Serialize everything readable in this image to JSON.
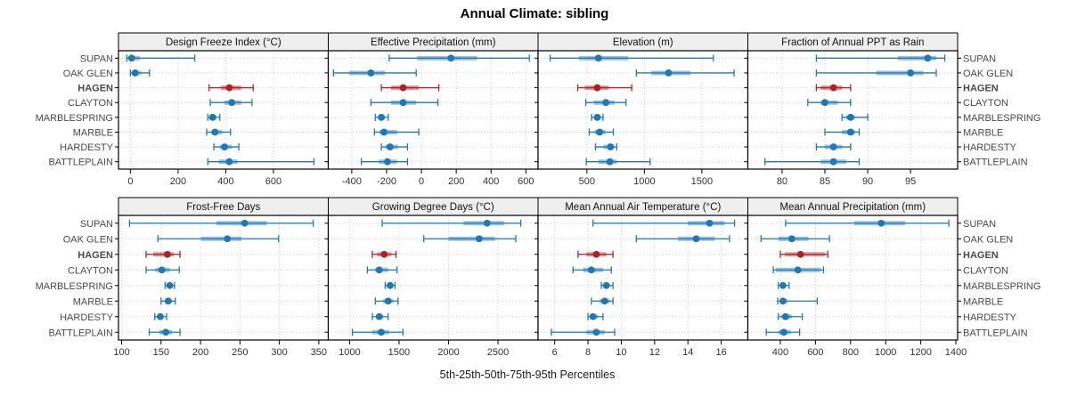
{
  "title": "Annual Climate: sibling",
  "footer": "5th-25th-50th-75th-95th Percentiles",
  "stations": [
    "SUPAN",
    "OAK GLEN",
    "HAGEN",
    "CLAYTON",
    "MARBLESPRING",
    "MARBLE",
    "HARDESTY",
    "BATTLEPLAIN"
  ],
  "highlight_station": "HAGEN",
  "colors": {
    "point": "#1f78b4",
    "band": "#1f78b4",
    "highlight_point": "#b02126",
    "highlight_band": "#b02126",
    "header_bg": "#efefef",
    "panel_border": "#000000",
    "grid": "#c9c9c9",
    "station_label": "#4a4a4a",
    "tick_label": "#333333"
  },
  "chart_data": [
    {
      "type": "dotplot_percentile",
      "row": 0,
      "col": 0,
      "title": "Design Freeze Index (°C)",
      "xlim": [
        -50,
        830
      ],
      "ticks": [
        0,
        200,
        400,
        600
      ],
      "tick_labels": [
        "0",
        "200",
        "400",
        "600"
      ],
      "percentiles": [
        "5th",
        "25th",
        "50th",
        "75th",
        "95th"
      ],
      "values": {
        "SUPAN": [
          -15,
          -5,
          5,
          40,
          270
        ],
        "OAK GLEN": [
          0,
          8,
          20,
          45,
          80
        ],
        "HAGEN": [
          330,
          380,
          415,
          465,
          515
        ],
        "CLAYTON": [
          335,
          395,
          425,
          465,
          510
        ],
        "MARBLESPRING": [
          325,
          335,
          345,
          360,
          375
        ],
        "MARBLE": [
          320,
          340,
          355,
          385,
          420
        ],
        "HARDESTY": [
          350,
          375,
          395,
          425,
          455
        ],
        "BATTLEPLAIN": [
          325,
          370,
          415,
          450,
          770
        ]
      }
    },
    {
      "type": "dotplot_percentile",
      "row": 0,
      "col": 1,
      "title": "Effective Precipitation (mm)",
      "xlim": [
        -535,
        670
      ],
      "ticks": [
        -400,
        -200,
        0,
        200,
        400,
        600
      ],
      "tick_labels": [
        "-400",
        "-200",
        "0",
        "200",
        "400",
        "600"
      ],
      "percentiles": [
        "5th",
        "25th",
        "50th",
        "75th",
        "95th"
      ],
      "values": {
        "SUPAN": [
          -185,
          -25,
          170,
          320,
          620
        ],
        "OAK GLEN": [
          -505,
          -415,
          -290,
          -210,
          -30
        ],
        "HAGEN": [
          -230,
          -175,
          -105,
          -15,
          100
        ],
        "CLAYTON": [
          -290,
          -175,
          -105,
          -30,
          95
        ],
        "MARBLESPRING": [
          -265,
          -245,
          -230,
          -210,
          -190
        ],
        "MARBLE": [
          -270,
          -240,
          -215,
          -140,
          -15
        ],
        "HARDESTY": [
          -230,
          -205,
          -180,
          -135,
          -80
        ],
        "BATTLEPLAIN": [
          -345,
          -245,
          -195,
          -140,
          -80
        ]
      }
    },
    {
      "type": "dotplot_percentile",
      "row": 0,
      "col": 2,
      "title": "Elevation (m)",
      "xlim": [
        75,
        1900
      ],
      "ticks": [
        500,
        1000,
        1500
      ],
      "tick_labels": [
        "500",
        "1000",
        "1500"
      ],
      "percentiles": [
        "5th",
        "25th",
        "50th",
        "75th",
        "95th"
      ],
      "values": {
        "SUPAN": [
          180,
          430,
          600,
          860,
          1600
        ],
        "OAK GLEN": [
          930,
          1060,
          1210,
          1400,
          1780
        ],
        "HAGEN": [
          420,
          480,
          590,
          690,
          890
        ],
        "CLAYTON": [
          490,
          560,
          665,
          740,
          840
        ],
        "MARBLESPRING": [
          540,
          565,
          590,
          615,
          640
        ],
        "MARBLE": [
          520,
          570,
          610,
          660,
          730
        ],
        "HARDESTY": [
          575,
          645,
          705,
          735,
          760
        ],
        "BATTLEPLAIN": [
          495,
          600,
          700,
          760,
          1050
        ]
      }
    },
    {
      "type": "dotplot_percentile",
      "row": 0,
      "col": 3,
      "title": "Fraction of Annual PPT as Rain",
      "xlim": [
        76,
        100.5
      ],
      "ticks": [
        80,
        85,
        90,
        95
      ],
      "tick_labels": [
        "80",
        "85",
        "90",
        "95"
      ],
      "percentiles": [
        "5th",
        "25th",
        "50th",
        "75th",
        "95th"
      ],
      "values": {
        "SUPAN": [
          84,
          93.5,
          97,
          98,
          99
        ],
        "OAK GLEN": [
          84,
          91,
          95,
          96.5,
          98
        ],
        "HAGEN": [
          84,
          84.5,
          86,
          87,
          88
        ],
        "CLAYTON": [
          83,
          84.5,
          85,
          86.5,
          88
        ],
        "MARBLESPRING": [
          87,
          87.5,
          88,
          88.5,
          90
        ],
        "MARBLE": [
          85,
          87,
          88,
          88.5,
          89
        ],
        "HARDESTY": [
          84,
          85,
          86,
          87,
          88
        ],
        "BATTLEPLAIN": [
          78,
          84.5,
          86,
          87.5,
          89
        ]
      }
    },
    {
      "type": "dotplot_percentile",
      "row": 1,
      "col": 0,
      "title": "Frost-Free Days",
      "xlim": [
        96,
        362
      ],
      "ticks": [
        100,
        150,
        200,
        250,
        300,
        350
      ],
      "tick_labels": [
        "100",
        "150",
        "200",
        "250",
        "300",
        "350"
      ],
      "percentiles": [
        "5th",
        "25th",
        "50th",
        "75th",
        "95th"
      ],
      "values": {
        "SUPAN": [
          110,
          220,
          256,
          284,
          343
        ],
        "OAK GLEN": [
          146,
          201,
          234,
          252,
          299
        ],
        "HAGEN": [
          131,
          140,
          158,
          166,
          174
        ],
        "CLAYTON": [
          131,
          143,
          151,
          161,
          173
        ],
        "MARBLESPRING": [
          155,
          158,
          161,
          164,
          167
        ],
        "MARBLE": [
          150,
          155,
          159,
          164,
          168
        ],
        "HARDESTY": [
          142,
          146,
          149,
          153,
          157
        ],
        "BATTLEPLAIN": [
          135,
          148,
          156,
          164,
          174
        ]
      }
    },
    {
      "type": "dotplot_percentile",
      "row": 1,
      "col": 1,
      "title": "Growing Degree Days (°C)",
      "xlim": [
        785,
        2905
      ],
      "ticks": [
        1000,
        1500,
        2000,
        2500
      ],
      "tick_labels": [
        "1000",
        "1500",
        "2000",
        "2500"
      ],
      "percentiles": [
        "5th",
        "25th",
        "50th",
        "75th",
        "95th"
      ],
      "values": {
        "SUPAN": [
          1330,
          2150,
          2390,
          2560,
          2730
        ],
        "OAK GLEN": [
          1750,
          2000,
          2310,
          2470,
          2680
        ],
        "HAGEN": [
          1230,
          1280,
          1350,
          1420,
          1470
        ],
        "CLAYTON": [
          1180,
          1260,
          1300,
          1390,
          1480
        ],
        "MARBLESPRING": [
          1360,
          1390,
          1410,
          1440,
          1460
        ],
        "MARBLE": [
          1260,
          1340,
          1390,
          1440,
          1490
        ],
        "HARDESTY": [
          1230,
          1270,
          1300,
          1340,
          1390
        ],
        "BATTLEPLAIN": [
          1030,
          1230,
          1320,
          1400,
          1540
        ]
      }
    },
    {
      "type": "dotplot_percentile",
      "row": 1,
      "col": 2,
      "title": "Mean Annual Air Temperature (°C)",
      "xlim": [
        5,
        17.6
      ],
      "ticks": [
        6,
        8,
        10,
        12,
        14,
        16
      ],
      "tick_labels": [
        "6",
        "8",
        "10",
        "12",
        "14",
        "16"
      ],
      "percentiles": [
        "5th",
        "25th",
        "50th",
        "75th",
        "95th"
      ],
      "values": {
        "SUPAN": [
          8.3,
          14.0,
          15.3,
          16.2,
          16.8
        ],
        "OAK GLEN": [
          10.9,
          13.4,
          14.5,
          15.6,
          16.5
        ],
        "HAGEN": [
          7.4,
          7.9,
          8.5,
          9.1,
          9.5
        ],
        "CLAYTON": [
          7.1,
          7.7,
          8.2,
          8.9,
          9.4
        ],
        "MARBLESPRING": [
          8.8,
          9.0,
          9.1,
          9.3,
          9.5
        ],
        "MARBLE": [
          8.2,
          8.7,
          9.0,
          9.3,
          9.5
        ],
        "HARDESTY": [
          8.0,
          8.1,
          8.3,
          8.6,
          8.9
        ],
        "BATTLEPLAIN": [
          5.8,
          7.9,
          8.5,
          9.0,
          9.6
        ]
      }
    },
    {
      "type": "dotplot_percentile",
      "row": 1,
      "col": 3,
      "title": "Mean Annual Precipitation (mm)",
      "xlim": [
        215,
        1410
      ],
      "ticks": [
        400,
        600,
        800,
        1000,
        1200,
        1400
      ],
      "tick_labels": [
        "400",
        "600",
        "800",
        "1000",
        "1200",
        "1400"
      ],
      "percentiles": [
        "5th",
        "25th",
        "50th",
        "75th",
        "95th"
      ],
      "values": {
        "SUPAN": [
          430,
          820,
          975,
          1110,
          1360
        ],
        "OAK GLEN": [
          290,
          390,
          465,
          560,
          680
        ],
        "HAGEN": [
          400,
          425,
          515,
          655,
          670
        ],
        "CLAYTON": [
          360,
          375,
          500,
          630,
          646
        ],
        "MARBLESPRING": [
          388,
          400,
          415,
          430,
          450
        ],
        "MARBLE": [
          385,
          400,
          415,
          440,
          610
        ],
        "HARDESTY": [
          388,
          405,
          430,
          465,
          525
        ],
        "BATTLEPLAIN": [
          320,
          390,
          420,
          460,
          510
        ]
      }
    }
  ]
}
